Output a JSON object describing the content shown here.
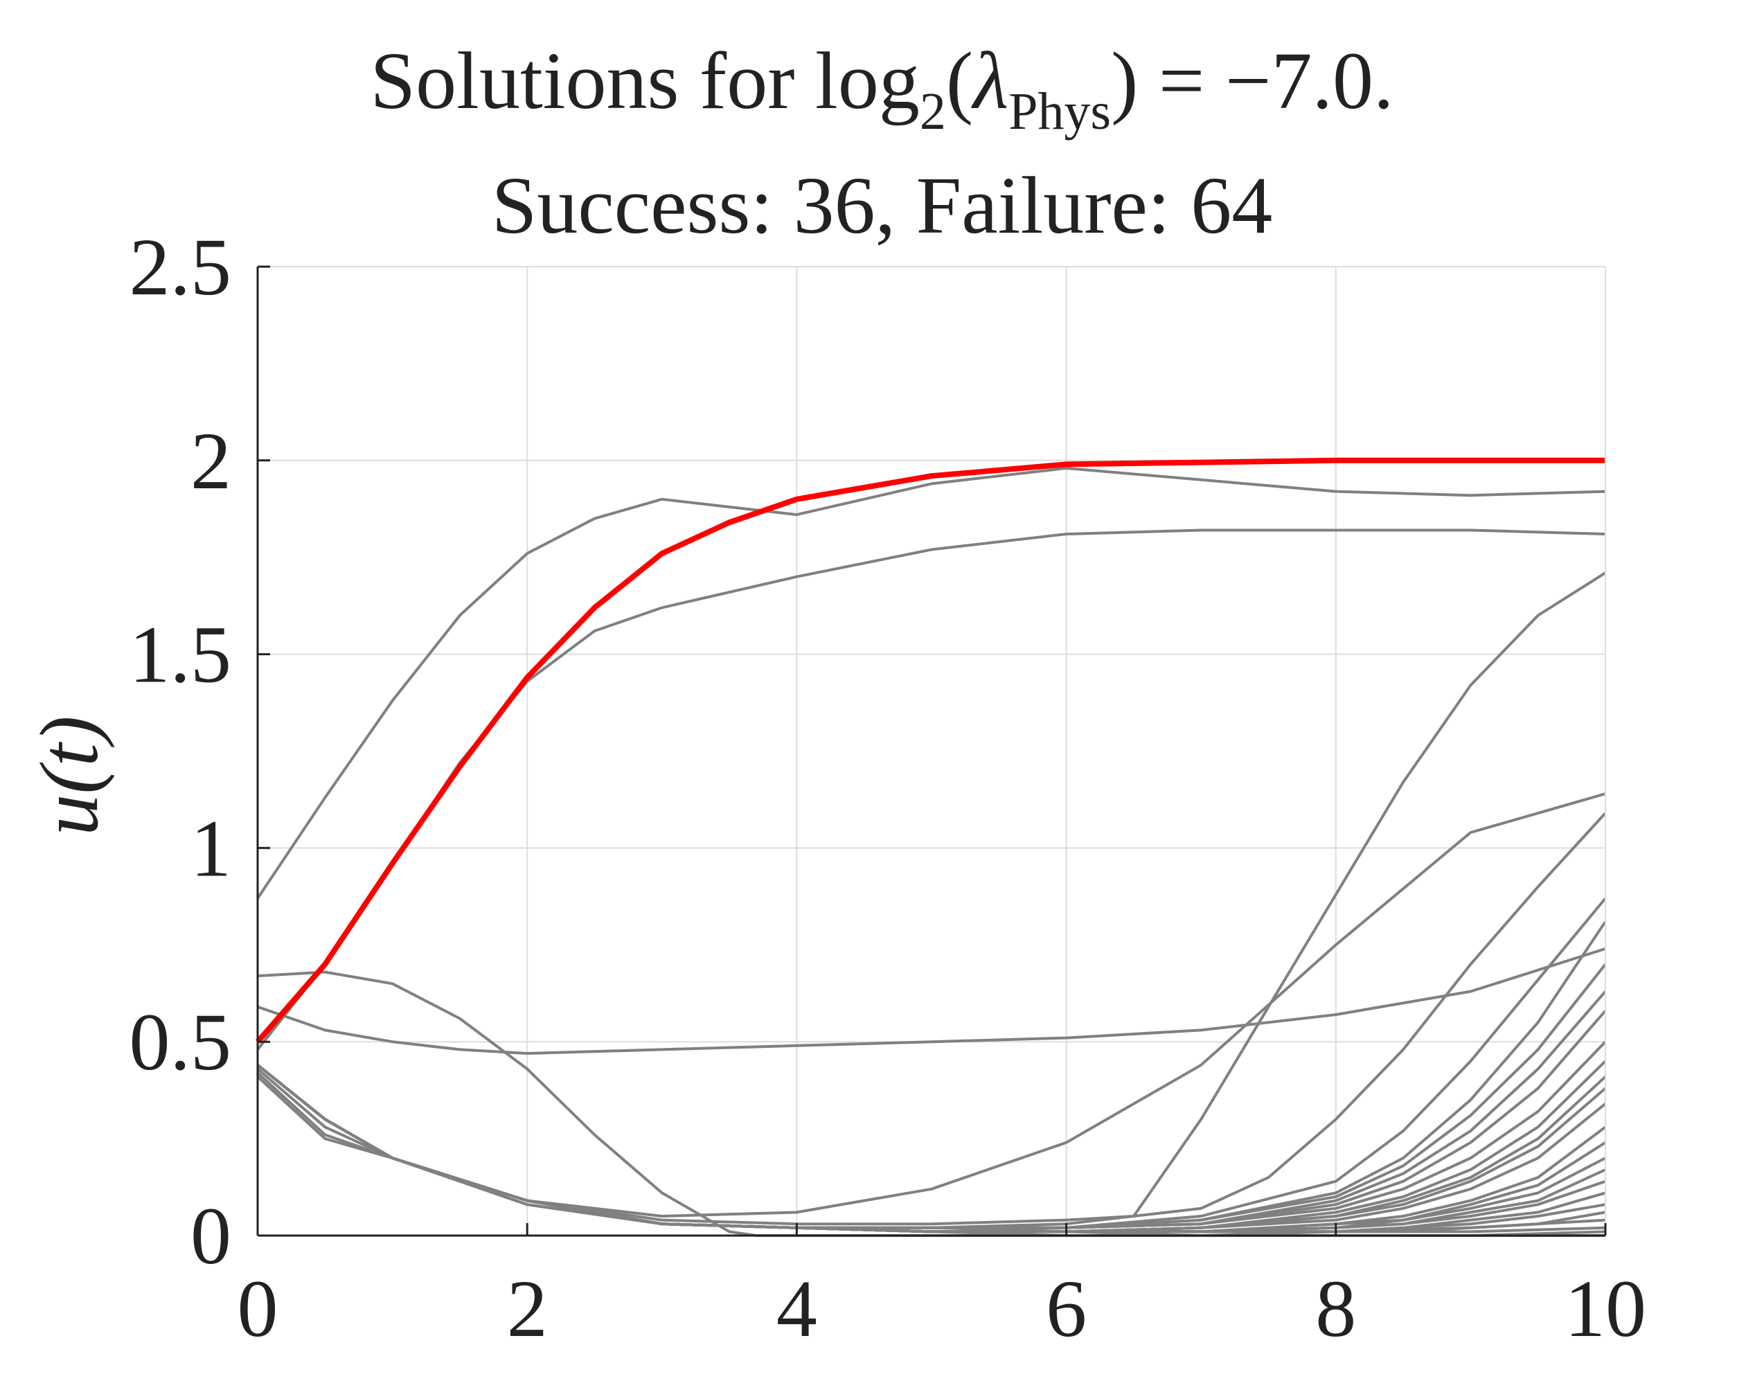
{
  "chart_data": {
    "type": "line",
    "title": {
      "prefix": "Solutions for ",
      "log": "log",
      "log_base": "2",
      "open_paren": "(",
      "lambda": "λ",
      "lambda_sub": "Phys",
      "close_paren_value": ") = −7.0.",
      "line2": "Success: 36, Failure: 64"
    },
    "xlabel": "",
    "ylabel": "u(t)",
    "xlim": [
      0,
      10
    ],
    "ylim": [
      0,
      2.5
    ],
    "xticks": [
      0,
      2,
      4,
      6,
      8,
      10
    ],
    "xtick_labels": [
      "0",
      "2",
      "4",
      "6",
      "8",
      "10"
    ],
    "yticks": [
      0,
      0.5,
      1,
      1.5,
      2,
      2.5
    ],
    "ytick_labels": [
      "0",
      "0.5",
      "1",
      "1.5",
      "2",
      "2.5"
    ],
    "grid": true,
    "colors": {
      "reference": "#ff0000",
      "solutions": "#808080",
      "axis": "#222222",
      "grid": "#dddddd"
    },
    "reference_series": {
      "x": [
        0,
        0.5,
        1,
        1.5,
        2,
        2.5,
        3,
        3.5,
        4,
        5,
        6,
        7,
        8,
        9,
        10
      ],
      "y": [
        0.5,
        0.7,
        0.96,
        1.21,
        1.44,
        1.62,
        1.76,
        1.84,
        1.9,
        1.96,
        1.99,
        1.995,
        2.0,
        2.0,
        2.0
      ]
    },
    "series": [
      {
        "x": [
          0,
          0.5,
          1,
          1.5,
          2,
          2.5,
          3,
          3.5,
          4,
          5,
          6,
          7,
          8,
          9,
          10
        ],
        "y": [
          0.87,
          1.13,
          1.38,
          1.6,
          1.76,
          1.85,
          1.9,
          1.88,
          1.86,
          1.94,
          1.98,
          1.95,
          1.92,
          1.91,
          1.92
        ]
      },
      {
        "x": [
          0,
          0.5,
          1,
          1.5,
          2,
          2.5,
          3,
          4,
          5,
          6,
          7,
          8,
          9,
          10
        ],
        "y": [
          0.48,
          0.7,
          0.96,
          1.22,
          1.43,
          1.56,
          1.62,
          1.7,
          1.77,
          1.81,
          1.82,
          1.82,
          1.82,
          1.81
        ]
      },
      {
        "x": [
          0,
          0.5,
          1,
          1.5,
          2,
          3,
          4,
          5,
          6,
          7,
          8,
          9,
          10
        ],
        "y": [
          0.59,
          0.53,
          0.5,
          0.48,
          0.47,
          0.48,
          0.49,
          0.5,
          0.51,
          0.53,
          0.57,
          0.63,
          0.74
        ]
      },
      {
        "x": [
          0,
          0.5,
          1,
          1.5,
          2,
          2.5,
          3,
          3.5,
          3.7,
          4,
          6,
          8,
          10
        ],
        "y": [
          0.67,
          0.68,
          0.65,
          0.56,
          0.43,
          0.26,
          0.11,
          0.01,
          0.0,
          0.0,
          0.0,
          0.0,
          0.0
        ]
      },
      {
        "x": [
          0,
          0.5,
          1,
          2,
          3,
          4,
          5,
          6,
          7,
          8,
          9,
          10
        ],
        "y": [
          0.44,
          0.3,
          0.2,
          0.09,
          0.05,
          0.06,
          0.12,
          0.24,
          0.44,
          0.75,
          1.04,
          1.14
        ]
      },
      {
        "x": [
          0,
          0.5,
          1,
          2,
          3,
          4,
          5,
          6,
          6.5,
          7,
          7.5,
          8,
          8.5,
          9,
          9.5,
          10
        ],
        "y": [
          0.43,
          0.28,
          0.2,
          0.09,
          0.04,
          0.03,
          0.03,
          0.04,
          0.05,
          0.3,
          0.59,
          0.88,
          1.17,
          1.42,
          1.6,
          1.71
        ]
      },
      {
        "x": [
          0,
          0.5,
          1,
          2,
          3,
          4,
          5,
          6,
          7,
          7.5,
          8,
          8.5,
          9,
          9.5,
          10
        ],
        "y": [
          0.42,
          0.26,
          0.2,
          0.08,
          0.03,
          0.02,
          0.02,
          0.03,
          0.07,
          0.15,
          0.3,
          0.48,
          0.7,
          0.9,
          1.09
        ]
      },
      {
        "x": [
          0,
          0.5,
          1,
          2,
          3,
          4,
          5,
          6,
          7,
          8,
          8.5,
          9,
          9.5,
          10
        ],
        "y": [
          0.41,
          0.25,
          0.2,
          0.08,
          0.03,
          0.02,
          0.02,
          0.02,
          0.05,
          0.14,
          0.27,
          0.45,
          0.66,
          0.87
        ]
      },
      {
        "x": [
          0,
          0.5,
          1,
          2,
          3,
          4,
          5,
          6,
          7,
          8,
          8.5,
          9,
          9.5,
          10
        ],
        "y": [
          0.44,
          0.3,
          0.2,
          0.09,
          0.03,
          0.02,
          0.02,
          0.02,
          0.04,
          0.11,
          0.2,
          0.35,
          0.55,
          0.81
        ]
      },
      {
        "x": [
          0,
          0.5,
          1,
          2,
          3,
          4,
          5,
          6,
          7,
          8,
          8.5,
          9,
          9.5,
          10
        ],
        "y": [
          0.44,
          0.3,
          0.2,
          0.09,
          0.03,
          0.02,
          0.02,
          0.02,
          0.04,
          0.1,
          0.18,
          0.31,
          0.48,
          0.7
        ]
      },
      {
        "x": [
          0,
          0.5,
          1,
          2,
          3,
          4,
          5,
          6,
          7,
          8,
          8.5,
          9,
          9.5,
          10
        ],
        "y": [
          0.44,
          0.3,
          0.2,
          0.09,
          0.03,
          0.02,
          0.02,
          0.02,
          0.03,
          0.09,
          0.16,
          0.27,
          0.43,
          0.63
        ]
      },
      {
        "x": [
          0,
          0.5,
          1,
          2,
          3,
          4,
          5,
          6,
          7,
          8,
          8.5,
          9,
          9.5,
          10
        ],
        "y": [
          0.44,
          0.3,
          0.2,
          0.09,
          0.03,
          0.02,
          0.01,
          0.02,
          0.03,
          0.08,
          0.14,
          0.24,
          0.38,
          0.58
        ]
      },
      {
        "x": [
          0,
          0.5,
          1,
          2,
          3,
          4,
          5,
          6,
          7,
          8,
          8.5,
          9,
          9.5,
          10
        ],
        "y": [
          0.44,
          0.3,
          0.2,
          0.09,
          0.03,
          0.02,
          0.01,
          0.02,
          0.03,
          0.07,
          0.12,
          0.2,
          0.32,
          0.5
        ]
      },
      {
        "x": [
          0,
          0.5,
          1,
          2,
          3,
          4,
          5,
          6,
          7,
          8,
          8.5,
          9,
          9.5,
          10
        ],
        "y": [
          0.44,
          0.3,
          0.2,
          0.09,
          0.03,
          0.02,
          0.01,
          0.01,
          0.02,
          0.06,
          0.1,
          0.17,
          0.28,
          0.45
        ]
      },
      {
        "x": [
          0,
          0.5,
          1,
          2,
          3,
          4,
          5,
          6,
          7,
          8,
          8.5,
          9,
          9.5,
          10
        ],
        "y": [
          0.44,
          0.3,
          0.2,
          0.09,
          0.03,
          0.02,
          0.01,
          0.01,
          0.02,
          0.05,
          0.09,
          0.15,
          0.25,
          0.41
        ]
      },
      {
        "x": [
          0,
          0.5,
          1,
          2,
          3,
          4,
          5,
          6,
          7,
          8,
          8.5,
          9,
          9.5,
          10
        ],
        "y": [
          0.44,
          0.3,
          0.2,
          0.09,
          0.03,
          0.02,
          0.01,
          0.01,
          0.02,
          0.05,
          0.08,
          0.14,
          0.23,
          0.38
        ]
      },
      {
        "x": [
          0,
          0.5,
          1,
          2,
          3,
          4,
          5,
          6,
          7,
          8,
          8.5,
          9,
          9.5,
          10
        ],
        "y": [
          0.44,
          0.3,
          0.2,
          0.09,
          0.03,
          0.02,
          0.01,
          0.01,
          0.02,
          0.04,
          0.07,
          0.12,
          0.2,
          0.34
        ]
      },
      {
        "x": [
          0,
          0.5,
          1,
          2,
          3,
          4,
          5,
          6,
          7,
          8,
          8.5,
          9,
          9.5,
          10
        ],
        "y": [
          0.44,
          0.3,
          0.2,
          0.09,
          0.03,
          0.02,
          0.01,
          0.01,
          0.01,
          0.03,
          0.05,
          0.09,
          0.15,
          0.28
        ]
      },
      {
        "x": [
          0,
          0.5,
          1,
          2,
          3,
          4,
          5,
          6,
          7,
          8,
          8.5,
          9,
          9.5,
          10
        ],
        "y": [
          0.44,
          0.3,
          0.2,
          0.09,
          0.03,
          0.02,
          0.01,
          0.01,
          0.01,
          0.03,
          0.04,
          0.08,
          0.13,
          0.24
        ]
      },
      {
        "x": [
          0,
          0.5,
          1,
          2,
          3,
          4,
          5,
          6,
          7,
          8,
          8.5,
          9,
          9.5,
          10
        ],
        "y": [
          0.44,
          0.3,
          0.2,
          0.09,
          0.03,
          0.02,
          0.01,
          0.01,
          0.01,
          0.02,
          0.04,
          0.07,
          0.11,
          0.2
        ]
      },
      {
        "x": [
          0,
          0.5,
          1,
          2,
          3,
          4,
          5,
          6,
          7,
          8,
          8.5,
          9,
          9.5,
          10
        ],
        "y": [
          0.44,
          0.3,
          0.2,
          0.09,
          0.03,
          0.02,
          0.01,
          0.01,
          0.01,
          0.02,
          0.03,
          0.06,
          0.09,
          0.17
        ]
      },
      {
        "x": [
          0,
          0.5,
          1,
          2,
          3,
          4,
          5,
          6,
          7,
          8,
          8.5,
          9,
          9.5,
          10
        ],
        "y": [
          0.44,
          0.3,
          0.2,
          0.09,
          0.03,
          0.02,
          0.01,
          0.01,
          0.01,
          0.02,
          0.03,
          0.05,
          0.08,
          0.14
        ]
      },
      {
        "x": [
          0,
          0.5,
          1,
          2,
          3,
          4,
          5,
          6,
          7,
          8,
          8.5,
          9,
          9.5,
          10
        ],
        "y": [
          0.44,
          0.3,
          0.2,
          0.09,
          0.03,
          0.02,
          0.01,
          0.01,
          0.01,
          0.01,
          0.02,
          0.04,
          0.06,
          0.11
        ]
      },
      {
        "x": [
          0,
          0.5,
          1,
          2,
          3,
          4,
          5,
          6,
          7,
          8,
          8.5,
          9,
          9.5,
          10
        ],
        "y": [
          0.44,
          0.3,
          0.2,
          0.09,
          0.03,
          0.02,
          0.01,
          0.01,
          0.01,
          0.01,
          0.02,
          0.03,
          0.05,
          0.08
        ]
      },
      {
        "x": [
          0,
          0.5,
          1,
          2,
          3,
          4,
          5,
          6,
          7,
          8,
          8.5,
          9,
          9.5,
          10
        ],
        "y": [
          0.44,
          0.3,
          0.2,
          0.09,
          0.03,
          0.02,
          0.01,
          0.01,
          0.01,
          0.01,
          0.01,
          0.02,
          0.03,
          0.06
        ]
      },
      {
        "x": [
          0,
          0.5,
          1,
          2,
          3,
          4,
          5,
          6,
          7,
          8,
          9,
          10
        ],
        "y": [
          0.44,
          0.3,
          0.2,
          0.09,
          0.03,
          0.02,
          0.01,
          0.01,
          0.01,
          0.01,
          0.02,
          0.04
        ]
      },
      {
        "x": [
          0,
          0.5,
          1,
          2,
          3,
          4,
          5,
          6,
          7,
          8,
          9,
          10
        ],
        "y": [
          0.44,
          0.3,
          0.2,
          0.09,
          0.03,
          0.02,
          0.01,
          0.01,
          0.0,
          0.01,
          0.01,
          0.02
        ]
      },
      {
        "x": [
          0,
          0.5,
          1,
          2,
          3,
          4,
          5,
          6,
          7,
          8,
          9,
          10
        ],
        "y": [
          0.44,
          0.3,
          0.2,
          0.09,
          0.03,
          0.02,
          0.01,
          0.0,
          0.0,
          0.0,
          0.0,
          0.01
        ]
      }
    ]
  }
}
